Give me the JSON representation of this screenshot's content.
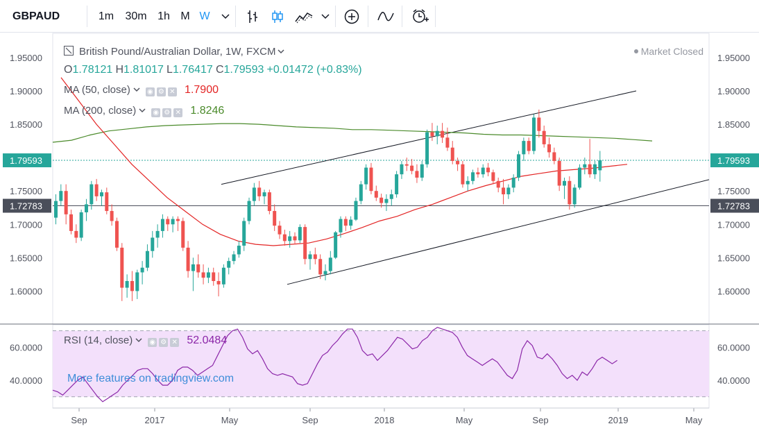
{
  "toolbar": {
    "symbol": "GBPAUD",
    "intervals": [
      "1m",
      "30m",
      "1h",
      "M",
      "W"
    ],
    "active_interval": "W",
    "icons": [
      "chevron-down-icon",
      "bar-style-icon",
      "candle-style-icon",
      "area-style-icon",
      "chevron-down-icon",
      "add-indicator-icon",
      "compare-icon",
      "alert-icon"
    ]
  },
  "legend": {
    "title": "British Pound/Australian Dollar, 1W, FXCM",
    "ohlc": {
      "o_label": "O",
      "o": "1.78121",
      "h_label": "H",
      "h": "1.81017",
      "l_label": "L",
      "l": "1.76417",
      "c_label": "C",
      "c": "1.79593"
    },
    "change": "+0.01472 (+0.83%)",
    "ma50_label": "MA (50, close)",
    "ma50_value": "1.7900",
    "ma200_label": "MA (200, close)",
    "ma200_value": "1.8246",
    "rsi_label": "RSI (14, close)",
    "rsi_value": "52.0484",
    "status": "Market Closed",
    "watermark": "More features on tradingview.com"
  },
  "colors": {
    "up": "#26a69a",
    "down": "#ef5350",
    "ma50": "#e32424",
    "ma200": "#4a8a2a",
    "rsi": "#8b26a8",
    "rsi_band": "#f3e0fb",
    "channel": "#131722",
    "last_price_box": "#26a69a",
    "level_box": "#4a4e5a"
  },
  "chart_data": {
    "type": "candlestick",
    "title": "British Pound/Australian Dollar, 1W, FXCM",
    "price_ylim": [
      1.55,
      1.97
    ],
    "y_ticks": [
      "1.95000",
      "1.90000",
      "1.85000",
      "1.75000",
      "1.70000",
      "1.65000",
      "1.60000"
    ],
    "x_ticks": [
      "Sep",
      "2017",
      "May",
      "Sep",
      "2018",
      "May",
      "Sep",
      "2019",
      "May"
    ],
    "last_price_label": "1.79593",
    "level_label": "1.72783",
    "level_value": 1.72783,
    "candles": [
      [
        1.71,
        1.745,
        1.7,
        1.735
      ],
      [
        1.735,
        1.76,
        1.728,
        1.75
      ],
      [
        1.75,
        1.76,
        1.7,
        1.715
      ],
      [
        1.715,
        1.722,
        1.685,
        1.69
      ],
      [
        1.69,
        1.7,
        1.672,
        1.68
      ],
      [
        1.68,
        1.722,
        1.675,
        1.718
      ],
      [
        1.718,
        1.738,
        1.705,
        1.73
      ],
      [
        1.73,
        1.765,
        1.722,
        1.76
      ],
      [
        1.76,
        1.768,
        1.735,
        1.742
      ],
      [
        1.742,
        1.752,
        1.728,
        1.748
      ],
      [
        1.748,
        1.755,
        1.715,
        1.72
      ],
      [
        1.72,
        1.73,
        1.698,
        1.705
      ],
      [
        1.705,
        1.71,
        1.66,
        1.665
      ],
      [
        1.665,
        1.672,
        1.585,
        1.605
      ],
      [
        1.605,
        1.625,
        1.59,
        1.615
      ],
      [
        1.615,
        1.63,
        1.585,
        1.6
      ],
      [
        1.6,
        1.632,
        1.588,
        1.628
      ],
      [
        1.628,
        1.645,
        1.61,
        1.635
      ],
      [
        1.635,
        1.67,
        1.63,
        1.66
      ],
      [
        1.66,
        1.69,
        1.65,
        1.68
      ],
      [
        1.68,
        1.7,
        1.665,
        1.69
      ],
      [
        1.69,
        1.715,
        1.68,
        1.708
      ],
      [
        1.708,
        1.712,
        1.69,
        1.7
      ],
      [
        1.7,
        1.712,
        1.688,
        1.708
      ],
      [
        1.708,
        1.712,
        1.69,
        1.705
      ],
      [
        1.705,
        1.71,
        1.66,
        1.665
      ],
      [
        1.665,
        1.675,
        1.62,
        1.63
      ],
      [
        1.63,
        1.65,
        1.6,
        1.64
      ],
      [
        1.64,
        1.655,
        1.62,
        1.628
      ],
      [
        1.628,
        1.64,
        1.61,
        1.62
      ],
      [
        1.62,
        1.635,
        1.612,
        1.628
      ],
      [
        1.628,
        1.635,
        1.608,
        1.615
      ],
      [
        1.615,
        1.628,
        1.592,
        1.61
      ],
      [
        1.61,
        1.64,
        1.605,
        1.635
      ],
      [
        1.635,
        1.65,
        1.625,
        1.645
      ],
      [
        1.645,
        1.66,
        1.64,
        1.655
      ],
      [
        1.655,
        1.675,
        1.65,
        1.668
      ],
      [
        1.668,
        1.71,
        1.66,
        1.705
      ],
      [
        1.705,
        1.74,
        1.7,
        1.735
      ],
      [
        1.735,
        1.762,
        1.728,
        1.755
      ],
      [
        1.755,
        1.765,
        1.735,
        1.742
      ],
      [
        1.742,
        1.752,
        1.73,
        1.748
      ],
      [
        1.748,
        1.752,
        1.715,
        1.72
      ],
      [
        1.72,
        1.73,
        1.69,
        1.698
      ],
      [
        1.698,
        1.705,
        1.678,
        1.685
      ],
      [
        1.685,
        1.692,
        1.668,
        1.675
      ],
      [
        1.675,
        1.69,
        1.665,
        1.682
      ],
      [
        1.682,
        1.688,
        1.67,
        1.676
      ],
      [
        1.676,
        1.7,
        1.672,
        1.696
      ],
      [
        1.696,
        1.7,
        1.64,
        1.648
      ],
      [
        1.648,
        1.66,
        1.632,
        1.655
      ],
      [
        1.655,
        1.665,
        1.64,
        1.648
      ],
      [
        1.648,
        1.655,
        1.618,
        1.625
      ],
      [
        1.625,
        1.64,
        1.616,
        1.63
      ],
      [
        1.63,
        1.66,
        1.625,
        1.65
      ],
      [
        1.65,
        1.69,
        1.648,
        1.688
      ],
      [
        1.688,
        1.712,
        1.68,
        1.708
      ],
      [
        1.708,
        1.712,
        1.69,
        1.698
      ],
      [
        1.698,
        1.712,
        1.692,
        1.707
      ],
      [
        1.707,
        1.74,
        1.705,
        1.735
      ],
      [
        1.735,
        1.765,
        1.73,
        1.76
      ],
      [
        1.76,
        1.79,
        1.752,
        1.785
      ],
      [
        1.785,
        1.792,
        1.745,
        1.75
      ],
      [
        1.75,
        1.758,
        1.735,
        1.74
      ],
      [
        1.74,
        1.746,
        1.725,
        1.732
      ],
      [
        1.732,
        1.745,
        1.72,
        1.738
      ],
      [
        1.738,
        1.752,
        1.728,
        1.745
      ],
      [
        1.745,
        1.78,
        1.74,
        1.775
      ],
      [
        1.775,
        1.795,
        1.768,
        1.79
      ],
      [
        1.79,
        1.8,
        1.78,
        1.788
      ],
      [
        1.788,
        1.798,
        1.775,
        1.78
      ],
      [
        1.78,
        1.79,
        1.762,
        1.77
      ],
      [
        1.77,
        1.795,
        1.765,
        1.79
      ],
      [
        1.79,
        1.842,
        1.785,
        1.838
      ],
      [
        1.838,
        1.852,
        1.825,
        1.832
      ],
      [
        1.832,
        1.848,
        1.82,
        1.84
      ],
      [
        1.84,
        1.852,
        1.822,
        1.83
      ],
      [
        1.83,
        1.845,
        1.81,
        1.815
      ],
      [
        1.815,
        1.825,
        1.79,
        1.795
      ],
      [
        1.795,
        1.8,
        1.78,
        1.79
      ],
      [
        1.79,
        1.795,
        1.755,
        1.76
      ],
      [
        1.76,
        1.772,
        1.75,
        1.765
      ],
      [
        1.765,
        1.782,
        1.76,
        1.778
      ],
      [
        1.778,
        1.785,
        1.77,
        1.775
      ],
      [
        1.775,
        1.79,
        1.77,
        1.785
      ],
      [
        1.785,
        1.792,
        1.772,
        1.778
      ],
      [
        1.778,
        1.782,
        1.76,
        1.765
      ],
      [
        1.765,
        1.77,
        1.748,
        1.755
      ],
      [
        1.755,
        1.768,
        1.73,
        1.745
      ],
      [
        1.745,
        1.76,
        1.738,
        1.755
      ],
      [
        1.755,
        1.775,
        1.748,
        1.77
      ],
      [
        1.77,
        1.81,
        1.765,
        1.805
      ],
      [
        1.805,
        1.83,
        1.795,
        1.825
      ],
      [
        1.825,
        1.83,
        1.805,
        1.81
      ],
      [
        1.81,
        1.865,
        1.805,
        1.86
      ],
      [
        1.86,
        1.872,
        1.83,
        1.84
      ],
      [
        1.84,
        1.848,
        1.815,
        1.82
      ],
      [
        1.82,
        1.83,
        1.8,
        1.808
      ],
      [
        1.808,
        1.815,
        1.79,
        1.795
      ],
      [
        1.795,
        1.8,
        1.75,
        1.758
      ],
      [
        1.758,
        1.77,
        1.738,
        1.765
      ],
      [
        1.765,
        1.772,
        1.722,
        1.73
      ],
      [
        1.73,
        1.76,
        1.725,
        1.755
      ],
      [
        1.755,
        1.79,
        1.752,
        1.785
      ],
      [
        1.785,
        1.8,
        1.775,
        1.79
      ],
      [
        1.79,
        1.828,
        1.77,
        1.775
      ],
      [
        1.775,
        1.795,
        1.768,
        1.79
      ],
      [
        1.781,
        1.81,
        1.764,
        1.796
      ]
    ],
    "ma50": [
      1.92,
      1.885,
      1.85,
      1.82,
      1.79,
      1.765,
      1.74,
      1.72,
      1.7,
      1.685,
      1.675,
      1.67,
      1.668,
      1.67,
      1.672,
      1.678,
      1.686,
      1.695,
      1.705,
      1.712,
      1.722,
      1.73,
      1.74,
      1.75,
      1.758,
      1.765,
      1.772,
      1.776,
      1.78,
      1.782,
      1.784,
      1.787,
      1.79
    ],
    "ma200": [
      1.823,
      1.826,
      1.834,
      1.84,
      1.843,
      1.846,
      1.848,
      1.849,
      1.85,
      1.851,
      1.851,
      1.85,
      1.848,
      1.846,
      1.845,
      1.844,
      1.842,
      1.842,
      1.841,
      1.84,
      1.839,
      1.838,
      1.837,
      1.835,
      1.834,
      1.834,
      1.833,
      1.832,
      1.831,
      1.83,
      1.829,
      1.827,
      1.825
    ],
    "channel_upper": [
      [
        1.76,
        1.9
      ]
    ],
    "channel_lower": [
      [
        1.61,
        1.767
      ]
    ],
    "rsi_ylim": [
      25,
      75
    ],
    "rsi_ticks": [
      "60.0000",
      "40.0000"
    ],
    "rsi_levels": [
      70,
      30
    ],
    "rsi": [
      34,
      33,
      31,
      34,
      37,
      40,
      42,
      38,
      34,
      30,
      27,
      29,
      31,
      33,
      37,
      40,
      43,
      46,
      47,
      47,
      44,
      40,
      37,
      37,
      40,
      46,
      48,
      48,
      46,
      43,
      45,
      47,
      49,
      55,
      61,
      67,
      70,
      71,
      66,
      59,
      56,
      58,
      53,
      47,
      44,
      43,
      44,
      43,
      42,
      38,
      37,
      38,
      44,
      50,
      55,
      57,
      61,
      64,
      68,
      71,
      71,
      66,
      58,
      55,
      56,
      52,
      55,
      58,
      62,
      66,
      65,
      62,
      59,
      60,
      64,
      66,
      70,
      72,
      71,
      70,
      69,
      66,
      60,
      55,
      53,
      51,
      49,
      51,
      53,
      51,
      47,
      43,
      41,
      46,
      59,
      64,
      61,
      54,
      53,
      56,
      53,
      49,
      44,
      41,
      43,
      40,
      45,
      43,
      47,
      52,
      54,
      52,
      50,
      52
    ]
  }
}
